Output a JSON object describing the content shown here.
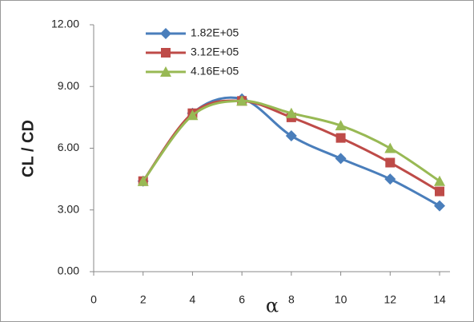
{
  "chart_data": {
    "type": "line",
    "x_label": "α",
    "y_label": "CL / CD",
    "x": [
      2,
      4,
      6,
      8,
      10,
      12,
      14
    ],
    "series": [
      {
        "name": "1.82E+05",
        "color": "#4a7ebb",
        "marker": "diamond",
        "values": [
          4.4,
          7.7,
          8.4,
          6.6,
          5.5,
          4.5,
          3.2
        ]
      },
      {
        "name": "3.12E+05",
        "color": "#be4b48",
        "marker": "square",
        "values": [
          4.4,
          7.7,
          8.3,
          7.5,
          6.5,
          5.3,
          3.9
        ]
      },
      {
        "name": "4.16E+05",
        "color": "#98b954",
        "marker": "triangle",
        "values": [
          4.4,
          7.6,
          8.3,
          7.7,
          7.1,
          6.0,
          4.4
        ]
      }
    ],
    "xlim": [
      0,
      14
    ],
    "xticks": [
      0,
      2,
      4,
      6,
      8,
      10,
      12,
      14
    ],
    "ylim": [
      0,
      12
    ],
    "yticks": [
      {
        "value": 0,
        "label": "0.00"
      },
      {
        "value": 3,
        "label": "3.00"
      },
      {
        "value": 6,
        "label": "6.00"
      },
      {
        "value": 9,
        "label": "9.00"
      },
      {
        "value": 12,
        "label": "12.00"
      }
    ],
    "smooth": true,
    "legend": "top-left"
  }
}
